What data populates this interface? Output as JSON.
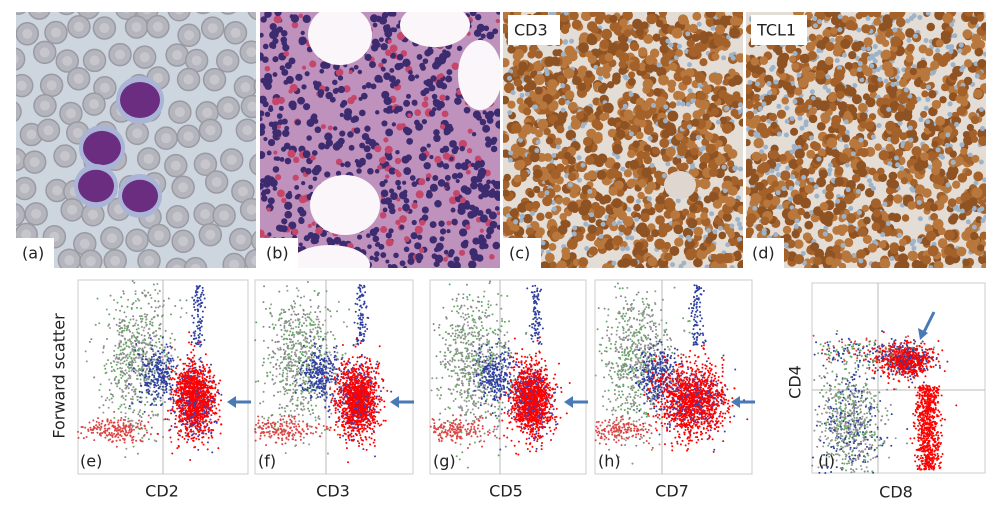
{
  "panels": [
    {
      "label": "(a)"
    },
    {
      "label": "(b)"
    },
    {
      "label": "(c)",
      "stain": "CD3"
    },
    {
      "label": "(d)",
      "stain": "TCL1"
    }
  ],
  "flow_panels": [
    {
      "label": "(e)",
      "x_axis": "CD2"
    },
    {
      "label": "(f)",
      "x_axis": "CD3"
    },
    {
      "label": "(g)",
      "x_axis": "CD5"
    },
    {
      "label": "(h)",
      "x_axis": "CD7"
    },
    {
      "label": "(i)",
      "x_axis": "CD8",
      "y_axis": "CD4"
    }
  ],
  "y_axis": "Forward scatter"
}
